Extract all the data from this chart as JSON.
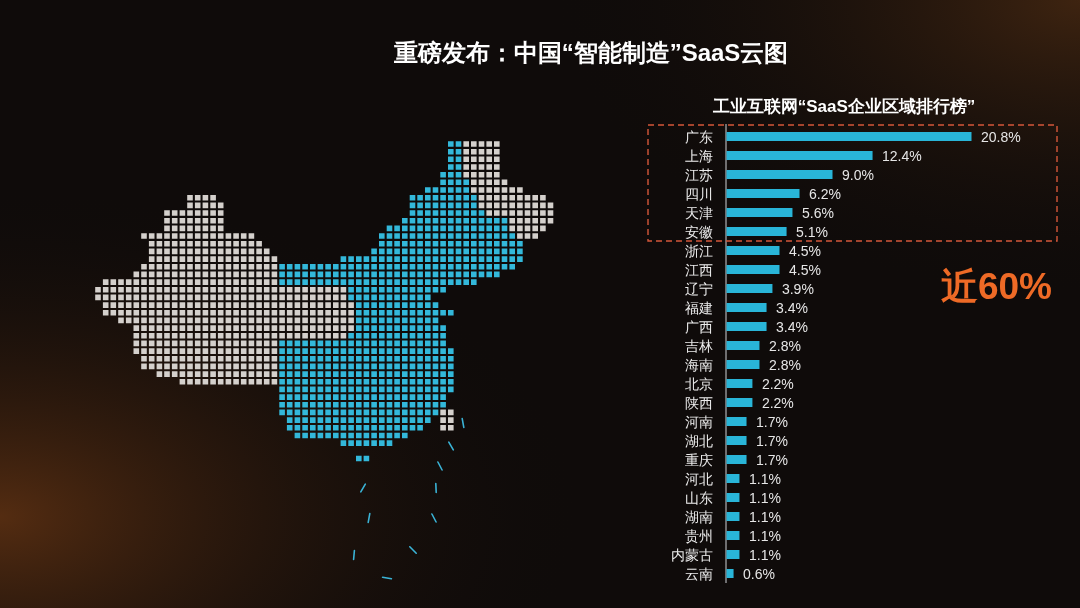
{
  "chart_data": {
    "type": "bar",
    "orientation": "horizontal",
    "title": "重磅发布：中国“智能制造”SaaS云图",
    "subtitle": "工业互联网“SaaS企业区域排行榜”",
    "categories": [
      "广东",
      "上海",
      "江苏",
      "四川",
      "天津",
      "安徽",
      "浙江",
      "江西",
      "辽宁",
      "福建",
      "广西",
      "吉林",
      "海南",
      "北京",
      "陕西",
      "河南",
      "湖北",
      "重庆",
      "河北",
      "山东",
      "湖南",
      "贵州",
      "内蒙古",
      "云南"
    ],
    "values": [
      20.8,
      12.4,
      9.0,
      6.2,
      5.6,
      5.1,
      4.5,
      4.5,
      3.9,
      3.4,
      3.4,
      2.8,
      2.8,
      2.2,
      2.2,
      1.7,
      1.7,
      1.7,
      1.1,
      1.1,
      1.1,
      1.1,
      1.1,
      0.6
    ],
    "value_labels": [
      "20.8%",
      "12.4%",
      "9.0%",
      "6.2%",
      "5.6%",
      "5.1%",
      "4.5%",
      "4.5%",
      "3.9%",
      "3.4%",
      "3.4%",
      "2.8%",
      "2.8%",
      "2.2%",
      "2.2%",
      "1.7%",
      "1.7%",
      "1.7%",
      "1.1%",
      "1.1%",
      "1.1%",
      "1.1%",
      "1.1%",
      "0.6%"
    ],
    "color": "#29b5d8",
    "annotations": [
      "近60%"
    ]
  }
}
